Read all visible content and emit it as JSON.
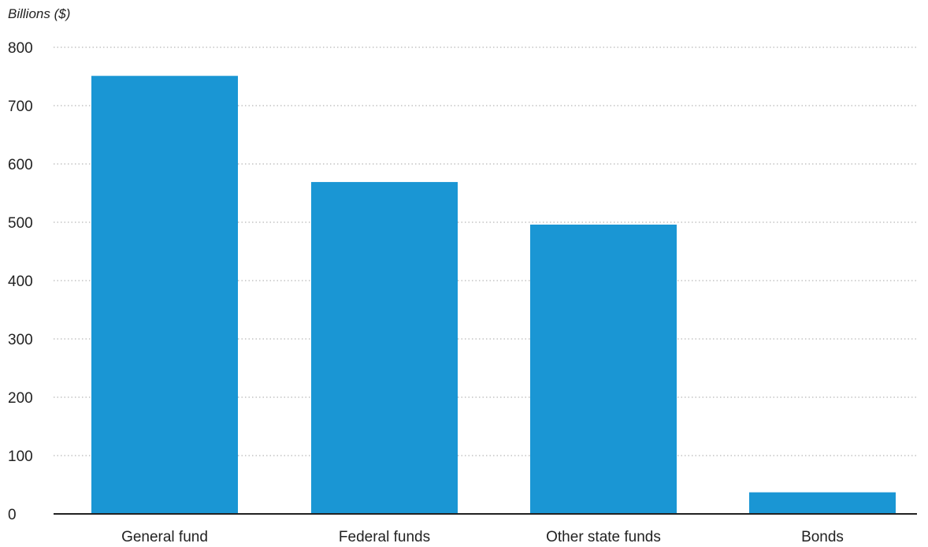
{
  "chart_data": {
    "type": "bar",
    "ylabel": "Billions ($)",
    "xlabel": "",
    "title": "",
    "categories": [
      "General fund",
      "Federal funds",
      "Other state funds",
      "Bonds"
    ],
    "values": [
      751,
      569,
      496,
      37
    ],
    "ylim": [
      0,
      800
    ],
    "yticks": [
      0,
      100,
      200,
      300,
      400,
      500,
      600,
      700,
      800
    ],
    "ytick_labels": [
      "0",
      "100",
      "200",
      "300",
      "400",
      "500",
      "600",
      "700",
      "800"
    ],
    "grid": "horizontal-dotted",
    "legend": "none",
    "bar_color": "#1a96d4",
    "grid_color": "#b8b8b8",
    "axis_color": "#222222"
  }
}
